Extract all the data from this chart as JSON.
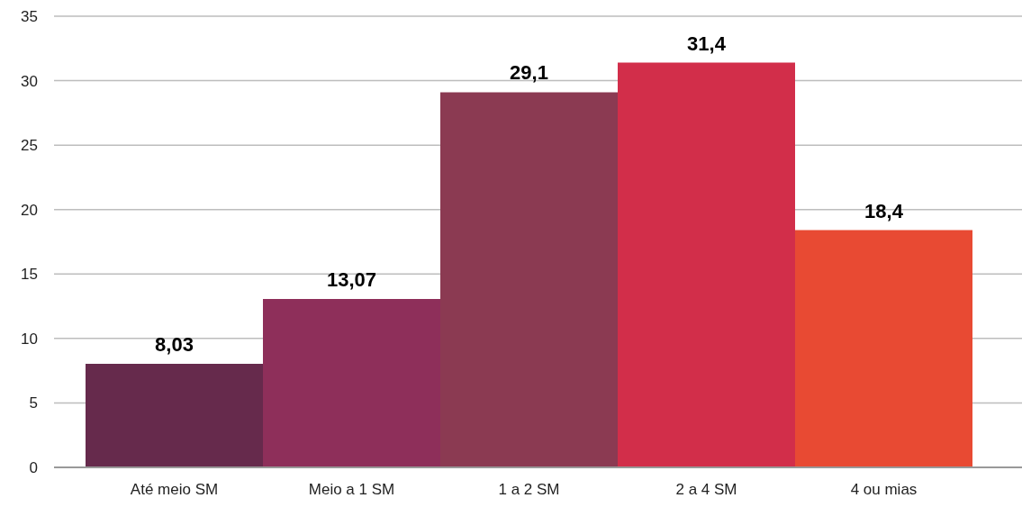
{
  "chart_data": {
    "type": "bar",
    "categories": [
      "Até meio SM",
      "Meio a 1 SM",
      "1 a 2 SM",
      "2 a 4 SM",
      "4 ou mias"
    ],
    "values": [
      8.03,
      13.07,
      29.1,
      31.4,
      18.4
    ],
    "colors": [
      "#662a4c",
      "#8e2f5a",
      "#8b3a52",
      "#d22e4a",
      "#e84a33"
    ],
    "value_labels": [
      "8,03",
      "13,07",
      "29,1",
      "31,4",
      "18,4"
    ],
    "ylim": [
      0,
      35
    ],
    "yticks": [
      0,
      5,
      10,
      15,
      20,
      25,
      30,
      35
    ],
    "grid": "y",
    "legend": false
  }
}
